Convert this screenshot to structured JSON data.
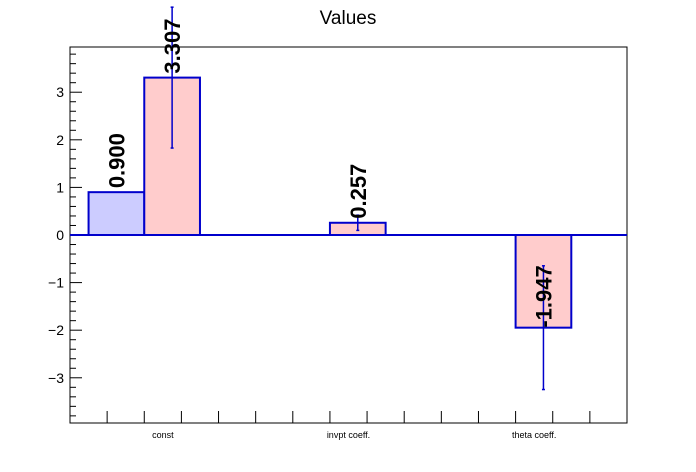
{
  "chart_data": {
    "type": "bar",
    "title": "Values",
    "categories": [
      "const",
      "invpt coeff.",
      "theta coeff."
    ],
    "series": [
      {
        "values": [
          0.9,
          null,
          null
        ],
        "errors": [
          null,
          null,
          null
        ],
        "labels": [
          "0.900",
          "",
          ""
        ],
        "fill": "#ccccff",
        "stroke": "#0000cc"
      },
      {
        "values": [
          3.307,
          0.257,
          -1.947
        ],
        "errors": [
          1.48,
          0.16,
          1.3
        ],
        "labels": [
          "3.307",
          "0.257",
          "-1.947"
        ],
        "fill": "#ffcccc",
        "stroke": "#0000cc"
      }
    ],
    "yticks": [
      -3,
      -2,
      -1,
      0,
      1,
      2,
      3
    ],
    "ytick_labels": [
      "−3",
      "−2",
      "−1",
      "0",
      "1",
      "2",
      "3"
    ],
    "ylim": [
      -3.95,
      3.95
    ],
    "zero_line_color": "#0000cc",
    "grid": false,
    "xlabel": "",
    "ylabel": ""
  }
}
